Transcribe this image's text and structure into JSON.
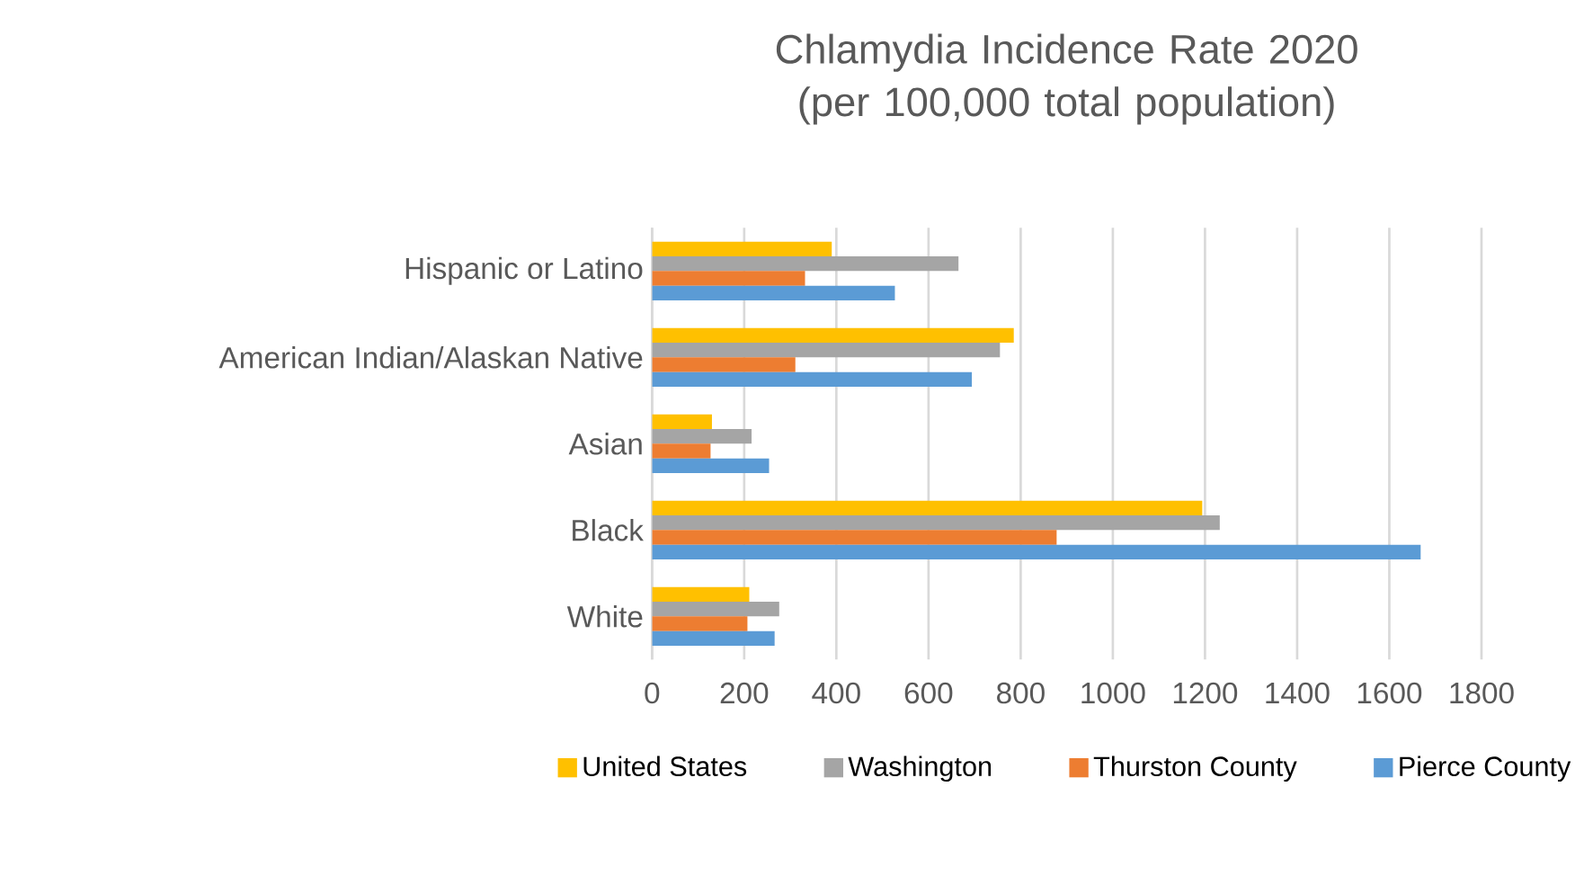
{
  "chart_data": {
    "type": "bar",
    "orientation": "horizontal",
    "title": "Chlamydia Incidence Rate 2020 (per 100,000 total population)",
    "categories": [
      "Hispanic or Latino",
      "American Indian/Alaskan Native",
      "Asian",
      "Black",
      "White"
    ],
    "series": [
      {
        "name": "United States",
        "color": "#ffc000",
        "values": [
          390,
          785,
          130,
          1194,
          211
        ]
      },
      {
        "name": "Washington",
        "color": "#a5a5a5",
        "values": [
          665,
          755,
          216,
          1232,
          276
        ]
      },
      {
        "name": "Thurston County",
        "color": "#ed7d31",
        "values": [
          332,
          311,
          127,
          878,
          207
        ]
      },
      {
        "name": "Pierce County",
        "color": "#5b9bd5",
        "values": [
          527,
          694,
          254,
          1668,
          266
        ]
      }
    ],
    "xlim": [
      0,
      1800
    ],
    "xticks": [
      0,
      200,
      400,
      600,
      800,
      1000,
      1200,
      1400,
      1600,
      1800
    ],
    "grid": "x",
    "legend": "bottom"
  }
}
